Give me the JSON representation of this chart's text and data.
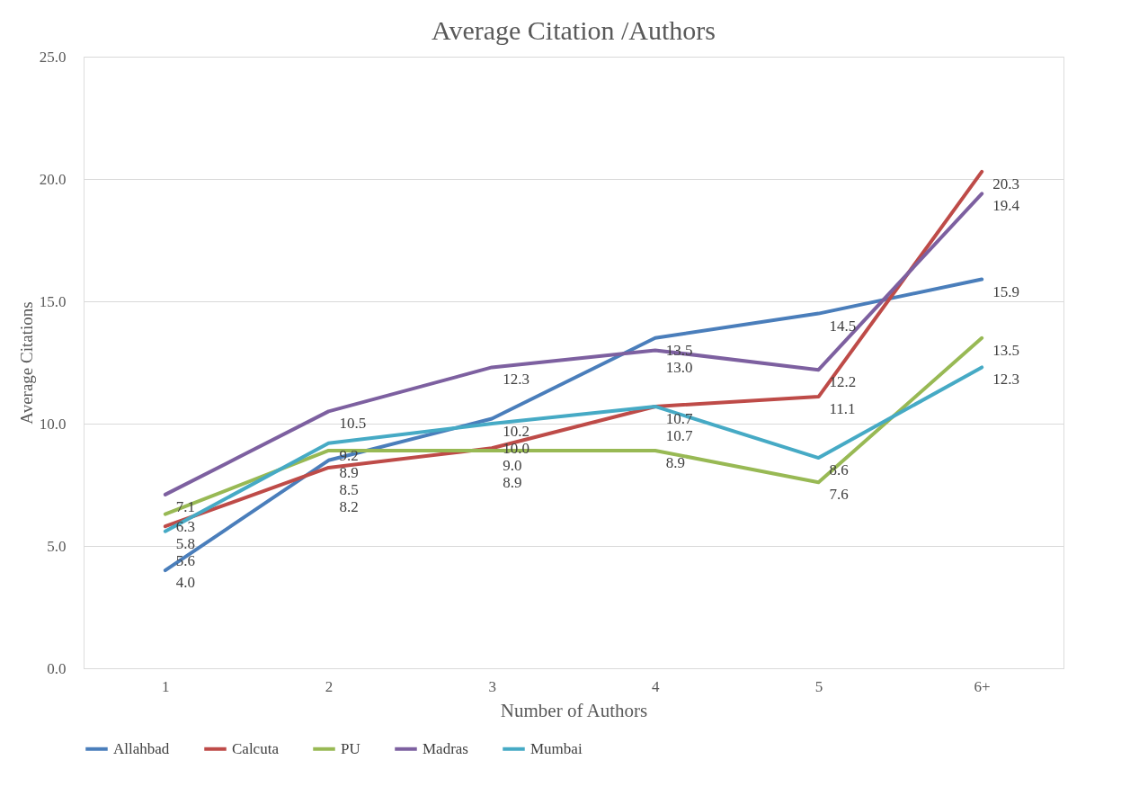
{
  "chart_data": {
    "type": "line",
    "title": "Average Citation /Authors",
    "xlabel": "Number of Authors",
    "ylabel": "Average Citations",
    "categories": [
      "1",
      "2",
      "3",
      "4",
      "5",
      "6+"
    ],
    "series": [
      {
        "name": "Allahbad",
        "color": "#4a7ebb",
        "values": [
          4.0,
          8.5,
          10.2,
          13.5,
          14.5,
          15.9
        ],
        "value_labels": [
          "4.0",
          "8.5",
          "10.2",
          "13.5",
          "14.5",
          "15.9"
        ]
      },
      {
        "name": "Calcuta",
        "color": "#be4b48",
        "values": [
          5.8,
          8.2,
          9.0,
          10.7,
          11.1,
          20.3
        ],
        "value_labels": [
          "5.8",
          "8.2",
          "9.0",
          "10.7",
          "11.1",
          "20.3"
        ]
      },
      {
        "name": "PU",
        "color": "#98b954",
        "values": [
          6.3,
          8.9,
          8.9,
          8.9,
          7.6,
          13.5
        ],
        "value_labels": [
          "6.3",
          "8.9",
          "8.9",
          "8.9",
          "7.6",
          "13.5"
        ]
      },
      {
        "name": "Madras",
        "color": "#7d60a0",
        "values": [
          7.1,
          10.5,
          12.3,
          13.0,
          12.2,
          19.4
        ],
        "value_labels": [
          "7.1",
          "10.5",
          "12.3",
          "13.0",
          "12.2",
          "19.4"
        ]
      },
      {
        "name": "Mumbai",
        "color": "#46aac5",
        "values": [
          5.6,
          9.2,
          10.0,
          10.7,
          8.6,
          12.3
        ],
        "value_labels": [
          "5.6",
          "9.2",
          "10.0",
          "10.7",
          "8.6",
          "12.3"
        ]
      }
    ],
    "ylim": [
      0,
      25
    ],
    "yticks": [
      {
        "value": 0,
        "label": "0.0"
      },
      {
        "value": 5,
        "label": "5.0"
      },
      {
        "value": 10,
        "label": "10.0"
      },
      {
        "value": 15,
        "label": "15.0"
      },
      {
        "value": 20,
        "label": "20.0"
      },
      {
        "value": 25,
        "label": "25.0"
      }
    ],
    "grid": "y",
    "legend": "bottom",
    "marker": "none",
    "line_style": "solid"
  }
}
